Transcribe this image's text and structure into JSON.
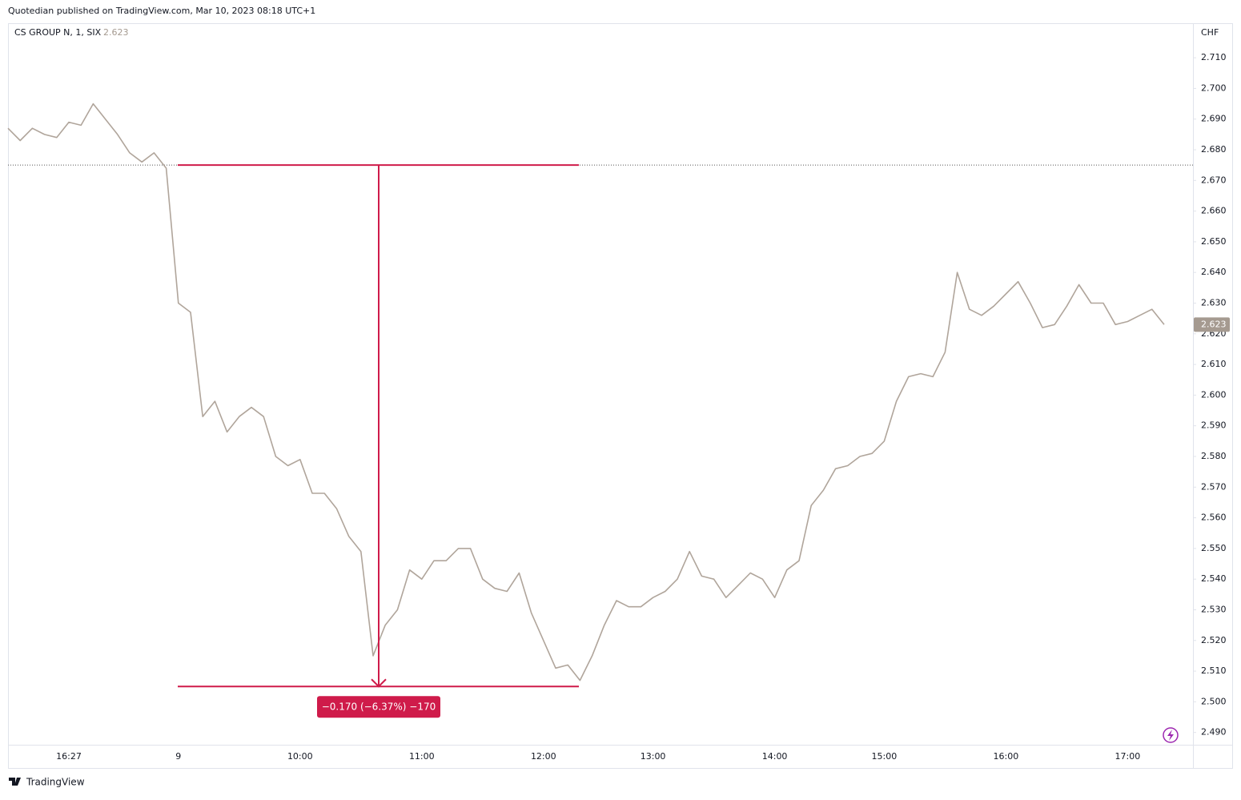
{
  "header": "Quotedian published on TradingView.com, Mar 10, 2023 08:18 UTC+1",
  "footer": "TradingView",
  "chart_data": {
    "type": "line",
    "currency": "CHF",
    "categories": [
      null,
      null,
      null,
      null,
      null,
      "16:27",
      null,
      null,
      null,
      null,
      null,
      null,
      null,
      null,
      "9",
      null,
      null,
      null,
      null,
      null,
      null,
      null,
      null,
      null,
      "10:00",
      null,
      null,
      null,
      null,
      null,
      null,
      null,
      null,
      null,
      "11:00",
      null,
      null,
      null,
      null,
      null,
      null,
      null,
      null,
      null,
      "12:00",
      null,
      null,
      null,
      null,
      null,
      null,
      null,
      null,
      "13:00",
      null,
      null,
      null,
      null,
      null,
      null,
      null,
      null,
      null,
      "14:00",
      null,
      null,
      null,
      null,
      null,
      null,
      null,
      null,
      "15:00",
      null,
      null,
      null,
      null,
      null,
      null,
      null,
      null,
      null,
      "16:00",
      null,
      null,
      null,
      null,
      null,
      null,
      null,
      null,
      null,
      "17:00",
      null,
      null,
      null
    ],
    "series": [
      {
        "name": "CS GROUP N, 1, SIX",
        "color": "#b0a59b",
        "values": [
          2.687,
          2.683,
          2.687,
          2.685,
          2.684,
          2.689,
          2.688,
          2.695,
          2.69,
          2.685,
          2.679,
          2.676,
          2.679,
          2.674,
          2.63,
          2.627,
          2.593,
          2.598,
          2.588,
          2.593,
          2.596,
          2.593,
          2.58,
          2.577,
          2.579,
          2.568,
          2.568,
          2.563,
          2.554,
          2.549,
          2.515,
          2.525,
          2.53,
          2.543,
          2.54,
          2.546,
          2.546,
          2.55,
          2.55,
          2.54,
          2.537,
          2.536,
          2.542,
          2.529,
          2.52,
          2.511,
          2.512,
          2.507,
          2.515,
          2.525,
          2.533,
          2.531,
          2.531,
          2.534,
          2.536,
          2.54,
          2.549,
          2.541,
          2.54,
          2.534,
          2.538,
          2.542,
          2.54,
          2.534,
          2.543,
          2.546,
          2.564,
          2.569,
          2.576,
          2.577,
          2.58,
          2.581,
          2.585,
          2.598,
          2.606,
          2.607,
          2.606,
          2.614,
          2.64,
          2.628,
          2.626,
          2.629,
          2.633,
          2.637,
          2.63,
          2.622,
          2.623,
          2.629,
          2.636,
          2.63,
          2.63,
          2.623,
          2.624,
          2.626,
          2.628,
          2.623
        ]
      }
    ],
    "ylim": [
      2.486,
      2.721
    ],
    "yticks": [
      {
        "value": 2.49,
        "label": "2.490"
      },
      {
        "value": 2.5,
        "label": "2.500"
      },
      {
        "value": 2.51,
        "label": "2.510"
      },
      {
        "value": 2.52,
        "label": "2.520"
      },
      {
        "value": 2.53,
        "label": "2.530"
      },
      {
        "value": 2.54,
        "label": "2.540"
      },
      {
        "value": 2.55,
        "label": "2.550"
      },
      {
        "value": 2.56,
        "label": "2.560"
      },
      {
        "value": 2.57,
        "label": "2.570"
      },
      {
        "value": 2.58,
        "label": "2.580"
      },
      {
        "value": 2.59,
        "label": "2.590"
      },
      {
        "value": 2.6,
        "label": "2.600"
      },
      {
        "value": 2.61,
        "label": "2.610"
      },
      {
        "value": 2.62,
        "label": "2.620"
      },
      {
        "value": 2.63,
        "label": "2.630"
      },
      {
        "value": 2.64,
        "label": "2.640"
      },
      {
        "value": 2.65,
        "label": "2.650"
      },
      {
        "value": 2.66,
        "label": "2.660"
      },
      {
        "value": 2.67,
        "label": "2.670"
      },
      {
        "value": 2.68,
        "label": "2.680"
      },
      {
        "value": 2.69,
        "label": "2.690"
      },
      {
        "value": 2.7,
        "label": "2.700"
      },
      {
        "value": 2.71,
        "label": "2.710"
      }
    ],
    "reference_line": 2.675,
    "measure": {
      "from": 2.675,
      "to": 2.505,
      "color": "#cf1b4a",
      "label": "−0.170 (−6.37%) −170"
    }
  }
}
